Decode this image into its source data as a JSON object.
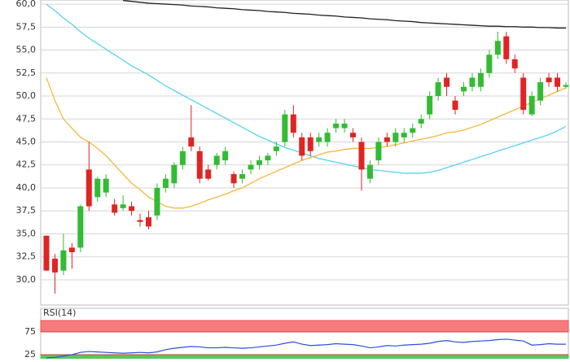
{
  "chart_data": [
    {
      "type": "candlestick",
      "open": [
        34.8,
        32.3,
        31.0,
        33.5,
        33.5,
        42.0,
        39.0,
        39.5,
        38.2,
        37.8,
        38.0,
        36.5,
        36.8,
        37.0,
        40.0,
        40.5,
        42.5,
        45.5,
        44.0,
        42.0,
        42.5,
        43.0,
        41.5,
        41.0,
        42.0,
        42.5,
        43.0,
        44.0,
        45.0,
        48.0,
        45.5,
        45.5,
        45.0,
        45.0,
        46.5,
        46.5,
        46.0,
        45.0,
        41.0,
        43.0,
        45.5,
        45.0,
        45.5,
        46.0,
        47.0,
        48.0,
        50.0,
        52.0,
        49.5,
        50.5,
        51.0,
        51.0,
        52.5,
        54.5,
        56.5,
        54.0,
        52.0,
        48.0,
        49.5,
        52.0,
        52.0,
        51.0
      ],
      "high": [
        34.8,
        32.8,
        35.0,
        34.0,
        38.2,
        45.0,
        41.2,
        41.5,
        38.8,
        39.2,
        38.5,
        37.2,
        37.5,
        40.5,
        41.5,
        42.8,
        44.5,
        49.0,
        44.5,
        42.5,
        43.8,
        44.5,
        41.8,
        42.0,
        43.0,
        43.5,
        43.8,
        45.0,
        48.5,
        49.0,
        46.0,
        46.0,
        46.0,
        46.5,
        47.5,
        47.5,
        46.5,
        45.5,
        43.0,
        45.5,
        46.0,
        46.5,
        46.5,
        47.0,
        48.0,
        50.5,
        52.0,
        52.5,
        50.0,
        51.5,
        52.5,
        53.0,
        55.0,
        57.0,
        57.0,
        54.5,
        52.5,
        50.5,
        52.0,
        52.5,
        52.5,
        51.5
      ],
      "low": [
        31.0,
        28.5,
        30.5,
        31.2,
        33.0,
        37.5,
        38.5,
        39.0,
        37.0,
        37.5,
        37.0,
        35.8,
        35.5,
        36.5,
        39.5,
        40.0,
        42.0,
        44.0,
        40.5,
        40.8,
        42.0,
        42.5,
        40.0,
        40.5,
        41.5,
        42.0,
        42.5,
        43.5,
        44.5,
        45.5,
        43.0,
        43.5,
        44.5,
        44.5,
        46.0,
        46.0,
        45.0,
        39.7,
        40.5,
        42.5,
        44.5,
        44.5,
        45.0,
        45.5,
        46.5,
        47.5,
        49.5,
        50.0,
        48.0,
        50.0,
        50.5,
        50.5,
        52.0,
        54.0,
        53.5,
        52.5,
        48.0,
        47.8,
        49.0,
        51.0,
        50.5,
        50.8
      ],
      "close": [
        31.0,
        30.8,
        33.2,
        33.0,
        38.0,
        38.0,
        41.0,
        41.0,
        37.3,
        38.2,
        37.5,
        36.3,
        35.8,
        40.0,
        41.0,
        42.5,
        44.0,
        44.5,
        41.0,
        41.0,
        43.5,
        44.0,
        40.5,
        41.5,
        42.5,
        43.0,
        43.5,
        44.5,
        48.0,
        46.0,
        43.5,
        44.0,
        45.5,
        46.0,
        47.0,
        47.0,
        45.5,
        42.0,
        42.5,
        45.0,
        45.0,
        46.0,
        46.0,
        46.5,
        47.5,
        50.0,
        51.5,
        51.0,
        48.5,
        51.0,
        52.0,
        52.5,
        54.5,
        56.0,
        54.0,
        53.0,
        48.5,
        50.0,
        51.5,
        51.5,
        51.0,
        51.2
      ],
      "up_color": "#33bb33",
      "down_color": "#e02424",
      "series": [
        {
          "color": "#222222",
          "values": [
            null,
            null,
            null,
            null,
            null,
            null,
            null,
            null,
            null,
            60.4,
            60.3,
            60.2,
            60.1,
            60.05,
            60,
            59.95,
            59.9,
            59.8,
            59.75,
            59.7,
            59.6,
            59.55,
            59.5,
            59.4,
            59.35,
            59.3,
            59.2,
            59.15,
            59.1,
            59,
            58.95,
            58.9,
            58.8,
            58.75,
            58.7,
            58.6,
            58.55,
            58.5,
            58.4,
            58.35,
            58.3,
            58.2,
            58.15,
            58.1,
            58,
            57.95,
            57.9,
            57.85,
            57.8,
            57.75,
            57.7,
            57.65,
            57.6,
            57.6,
            57.55,
            57.55,
            57.5,
            57.5,
            57.45,
            57.45,
            57.4,
            57.4
          ]
        },
        {
          "color": "#55d4ee",
          "values": [
            60,
            59.3,
            58.5,
            57.8,
            57,
            56.3,
            55.7,
            55.1,
            54.5,
            53.9,
            53.3,
            52.8,
            52.3,
            51.7,
            51.1,
            50.6,
            50.1,
            49.6,
            49.1,
            48.6,
            48.1,
            47.6,
            47.1,
            46.6,
            46.1,
            45.6,
            45.2,
            44.8,
            44.4,
            44.1,
            43.8,
            43.5,
            43.2,
            43,
            42.8,
            42.6,
            42.4,
            42.2,
            42,
            41.9,
            41.8,
            41.7,
            41.6,
            41.6,
            41.6,
            41.7,
            41.9,
            42.2,
            42.5,
            42.8,
            43.1,
            43.4,
            43.7,
            44,
            44.3,
            44.6,
            44.9,
            45.2,
            45.5,
            45.8,
            46.2,
            46.7
          ]
        },
        {
          "color": "#f5b83c",
          "values": [
            52,
            49.5,
            47.5,
            46.5,
            45.5,
            45,
            44.3,
            43.5,
            42.5,
            41.5,
            40.5,
            39.8,
            39,
            38.5,
            38,
            37.8,
            37.8,
            38,
            38.3,
            38.7,
            39,
            39.3,
            39.7,
            40,
            40.5,
            41,
            41.4,
            41.8,
            42.2,
            42.6,
            43,
            43.3,
            43.6,
            43.9,
            44,
            44.2,
            44.3,
            44.3,
            44.3,
            44.4,
            44.5,
            44.7,
            44.9,
            45.1,
            45.3,
            45.5,
            45.7,
            46,
            46.1,
            46.3,
            46.6,
            46.9,
            47.3,
            47.7,
            48.1,
            48.5,
            48.9,
            49.3,
            49.7,
            50.1,
            50.5,
            50.9
          ]
        }
      ],
      "ylim": [
        27.25,
        60.45
      ],
      "yticks": [
        {
          "value": 30,
          "label": "30,0"
        },
        {
          "value": 32.5,
          "label": "32,5"
        },
        {
          "value": 35,
          "label": "35,0"
        },
        {
          "value": 37.5,
          "label": "37,5"
        },
        {
          "value": 40,
          "label": "40,0"
        },
        {
          "value": 42.5,
          "label": "42,5"
        },
        {
          "value": 45,
          "label": "45,0"
        },
        {
          "value": 47.5,
          "label": "47,5"
        },
        {
          "value": 50,
          "label": "50,0"
        },
        {
          "value": 52.5,
          "label": "52,5"
        },
        {
          "value": 55,
          "label": "55,0"
        },
        {
          "value": 57.5,
          "label": "57,5"
        },
        {
          "value": 60,
          "label": "60,0"
        }
      ],
      "grid": true
    },
    {
      "type": "line",
      "title": "RSI(14)",
      "series": [
        {
          "color": "#2f4fe0",
          "values": [
            18,
            19,
            22,
            25,
            30,
            32,
            31,
            30,
            29,
            28,
            29,
            30,
            29,
            31,
            36,
            39,
            41,
            43,
            42,
            40,
            40,
            41,
            40,
            39,
            40,
            42,
            44,
            46,
            50,
            53,
            48,
            45,
            46,
            47,
            49,
            48,
            47,
            44,
            40,
            42,
            45,
            44,
            46,
            47,
            48,
            50,
            54,
            56,
            53,
            52,
            54,
            55,
            56,
            58,
            59,
            57,
            55,
            46,
            47,
            49,
            48,
            48
          ]
        }
      ],
      "ylim": [
        16,
        100
      ],
      "yticks": [
        25,
        75
      ],
      "bands": [
        {
          "from": 75,
          "to": 100,
          "color": "#f47c7c"
        },
        {
          "from": 0,
          "to": 25,
          "color": "#5cc65c"
        }
      ],
      "grid": true
    }
  ]
}
